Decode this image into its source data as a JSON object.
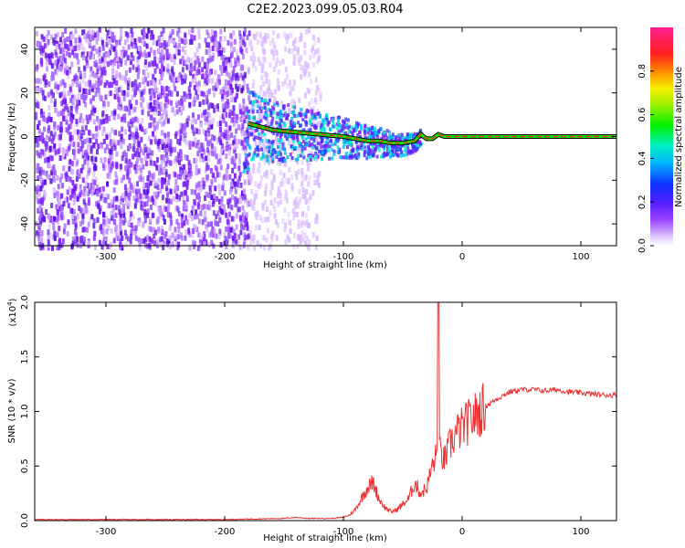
{
  "title": "C2E2.2023.099.05.03.R04",
  "chart_data": [
    {
      "type": "heatmap",
      "xlabel": "Height of straight line (km)",
      "ylabel": "Frequency (Hz)",
      "xlim": [
        -360,
        130
      ],
      "ylim": [
        -50,
        50
      ],
      "xticks": [
        -300,
        -200,
        -100,
        0,
        100
      ],
      "yticks": [
        -40,
        -20,
        0,
        20,
        40
      ],
      "colorbar": {
        "label": "Normalized spectral amplitude",
        "ticks": [
          "0.0",
          "0.2",
          "0.4",
          "0.6",
          "0.8"
        ],
        "tick_values": [
          0,
          0.2,
          0.4,
          0.6,
          0.8
        ],
        "range": [
          0,
          1
        ]
      },
      "ridge": {
        "x": [
          -180,
          -160,
          -140,
          -120,
          -100,
          -80,
          -70,
          -60,
          -50,
          -40,
          -35,
          -30,
          -25,
          -20,
          -15,
          0,
          50,
          100,
          130
        ],
        "y": [
          6,
          3,
          2,
          1,
          0,
          -2,
          -2,
          -3,
          -3,
          -2,
          1,
          -1,
          -1,
          1,
          0,
          0,
          0,
          0,
          0
        ]
      }
    },
    {
      "type": "line",
      "xlabel": "Height of straight line (km)",
      "ylabel": "SNR (10 * v/v)",
      "yscale_label": "(x10",
      "yscale_exp": "4",
      "yscale_close": ")",
      "xlim": [
        -360,
        130
      ],
      "ylim": [
        0,
        2.0
      ],
      "xticks": [
        -300,
        -200,
        -100,
        0,
        100
      ],
      "yticks": [
        "0.0",
        "0.5",
        "1.0",
        "1.5",
        "2.0"
      ],
      "ytick_values": [
        0,
        0.5,
        1.0,
        1.5,
        2.0
      ],
      "series": [
        {
          "color": "#f03030",
          "x": [
            -360,
            -300,
            -250,
            -200,
            -150,
            -140,
            -130,
            -110,
            -100,
            -95,
            -90,
            -85,
            -80,
            -75,
            -70,
            -65,
            -60,
            -55,
            -50,
            -45,
            -40,
            -35,
            -30,
            -25,
            -20,
            -15,
            -10,
            -5,
            0,
            10,
            20,
            30,
            40,
            50,
            60,
            70,
            80,
            90,
            100,
            110,
            120,
            130
          ],
          "y": [
            0.01,
            0.01,
            0.01,
            0.01,
            0.02,
            0.03,
            0.02,
            0.02,
            0.03,
            0.05,
            0.1,
            0.2,
            0.3,
            0.35,
            0.2,
            0.12,
            0.08,
            0.1,
            0.15,
            0.2,
            0.35,
            0.25,
            0.3,
            0.5,
            0.65,
            0.55,
            0.7,
            0.8,
            0.85,
            0.95,
            1.05,
            1.12,
            1.18,
            1.2,
            1.2,
            1.19,
            1.2,
            1.18,
            1.17,
            1.16,
            1.15,
            1.15
          ],
          "spike": {
            "x": -20,
            "y": 2.0
          }
        }
      ]
    }
  ]
}
